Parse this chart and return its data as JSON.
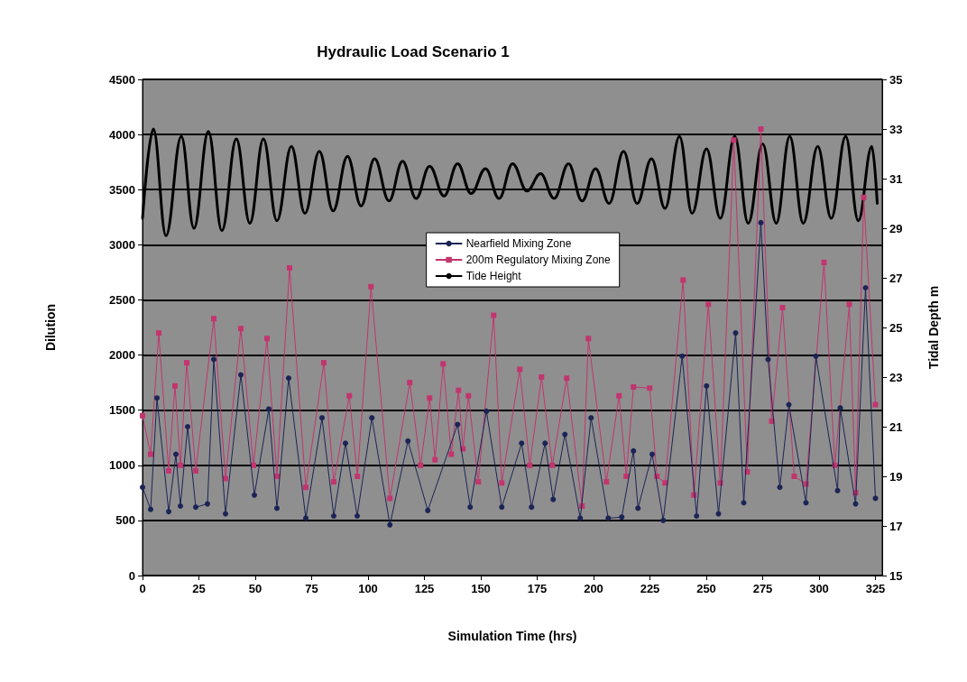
{
  "chart_data": {
    "type": "line",
    "title": "Hydraulic Load Scenario 1",
    "xlabel": "Simulation Time (hrs)",
    "ylabel": "Dilution",
    "y2label": "Tidal Depth m",
    "xlim": [
      0,
      328
    ],
    "xticks": [
      0,
      25,
      50,
      75,
      100,
      125,
      150,
      175,
      200,
      225,
      250,
      275,
      300,
      325
    ],
    "ylim": [
      0,
      4500
    ],
    "yticks": [
      0,
      500,
      1000,
      1500,
      2000,
      2500,
      3000,
      3500,
      4000,
      4500
    ],
    "y2lim": [
      15,
      35
    ],
    "y2ticks": [
      15,
      17,
      19,
      21,
      23,
      25,
      27,
      29,
      31,
      33,
      35
    ],
    "grid": "y",
    "legend": "center",
    "series": [
      {
        "name": "Nearfield Mixing Zone",
        "color": "#1c2456",
        "marker": "circle",
        "x": [
          0,
          3.6,
          6.4,
          11.6,
          14.8,
          16.8,
          20,
          23.6,
          28.8,
          31.6,
          36.8,
          43.6,
          49.6,
          56,
          59.6,
          64.8,
          72.4,
          79.6,
          84.8,
          90,
          95.2,
          101.7,
          109.7,
          117.7,
          126.5,
          139.7,
          145.3,
          152.5,
          159.3,
          168.1,
          172.5,
          178.5,
          182.1,
          187.3,
          194.1,
          198.9,
          206.5,
          212.5,
          217.7,
          219.7,
          226,
          230.9,
          239.3,
          245.7,
          250.1,
          255.4,
          263,
          266.6,
          274.2,
          277.4,
          282.6,
          286.6,
          294.2,
          298.6,
          308.2,
          309.4,
          316.2,
          320.6,
          325
        ],
        "values": [
          800,
          600,
          1610,
          580,
          1100,
          630,
          1350,
          620,
          650,
          1960,
          560,
          1820,
          730,
          1510,
          610,
          1790,
          520,
          1430,
          540,
          1200,
          540,
          1430,
          460,
          1220,
          590,
          1370,
          620,
          1490,
          620,
          1200,
          620,
          1200,
          690,
          1280,
          520,
          1430,
          520,
          530,
          1130,
          610,
          1100,
          500,
          1990,
          540,
          1720,
          560,
          2200,
          660,
          3200,
          1960,
          800,
          1550,
          660,
          1990,
          770,
          1520,
          650,
          2610,
          700
        ]
      },
      {
        "name": "200m Regulatory Mixing Zone",
        "color": "#c2356e",
        "marker": "square",
        "x": [
          0,
          3.6,
          7.2,
          11.6,
          14.4,
          16.8,
          19.6,
          23.6,
          31.6,
          36.8,
          43.6,
          49.2,
          55.2,
          59.6,
          65.2,
          72.4,
          80.4,
          84.8,
          91.7,
          95.3,
          101.3,
          109.7,
          118.5,
          123.3,
          127.3,
          129.7,
          133.3,
          136.9,
          140.1,
          142.1,
          144.5,
          148.9,
          155.7,
          159.3,
          167.3,
          171.7,
          176.9,
          181.7,
          188.1,
          194.9,
          197.7,
          205.7,
          211.3,
          214.5,
          217.7,
          224.9,
          228.1,
          231.7,
          239.7,
          244.5,
          250.9,
          256.2,
          262.2,
          268.2,
          274.2,
          279,
          283.8,
          289,
          294.2,
          302.2,
          307,
          313.4,
          316.2,
          319.8,
          325
        ],
        "values": [
          1450,
          1100,
          2200,
          950,
          1720,
          1000,
          1930,
          950,
          2330,
          880,
          2240,
          1000,
          2150,
          900,
          2790,
          800,
          1930,
          850,
          1630,
          900,
          2620,
          700,
          1750,
          1000,
          1610,
          1050,
          1920,
          1100,
          1680,
          1150,
          1630,
          850,
          2360,
          840,
          1870,
          1000,
          1800,
          1000,
          1790,
          630,
          2150,
          850,
          1630,
          900,
          1710,
          1700,
          900,
          840,
          2680,
          730,
          2460,
          840,
          3950,
          940,
          4050,
          1400,
          2430,
          900,
          830,
          2840,
          1000,
          2460,
          750,
          3430,
          1550
        ]
      },
      {
        "name": "Tide Height",
        "color": "#000000",
        "marker": "none",
        "axis": "y2",
        "x": [
          0,
          4.8,
          10.4,
          17.2,
          22.8,
          29.2,
          35.2,
          41.6,
          47.6,
          53.6,
          59.6,
          66,
          72,
          78.4,
          84.5,
          90.9,
          96.9,
          102.9,
          109.3,
          115.3,
          121.3,
          127.3,
          133.7,
          139.7,
          145.7,
          152.1,
          158.1,
          164.1,
          170.5,
          176.5,
          182.5,
          188.9,
          194.9,
          200.9,
          206.9,
          213.3,
          219.3,
          225.7,
          231.7,
          238.1,
          243.7,
          250.1,
          256.2,
          262.6,
          268.6,
          275,
          281,
          287,
          293,
          299.4,
          305.4,
          311.8,
          317.4,
          323.4,
          325.8
        ],
        "values": [
          29.4,
          33.0,
          28.7,
          32.7,
          29.0,
          32.9,
          28.9,
          32.6,
          29.2,
          32.6,
          29.3,
          32.3,
          29.6,
          32.1,
          29.7,
          31.9,
          29.9,
          31.8,
          30.1,
          31.7,
          30.2,
          31.5,
          30.3,
          31.6,
          30.4,
          31.4,
          30.2,
          31.6,
          30.5,
          31.2,
          30.2,
          31.6,
          30.1,
          31.4,
          30.0,
          32.1,
          30.0,
          31.8,
          29.8,
          32.7,
          29.6,
          32.2,
          29.4,
          32.7,
          29.2,
          32.4,
          29.2,
          32.7,
          29.2,
          32.3,
          29.4,
          32.7,
          29.3,
          32.3,
          30.0
        ]
      }
    ]
  }
}
